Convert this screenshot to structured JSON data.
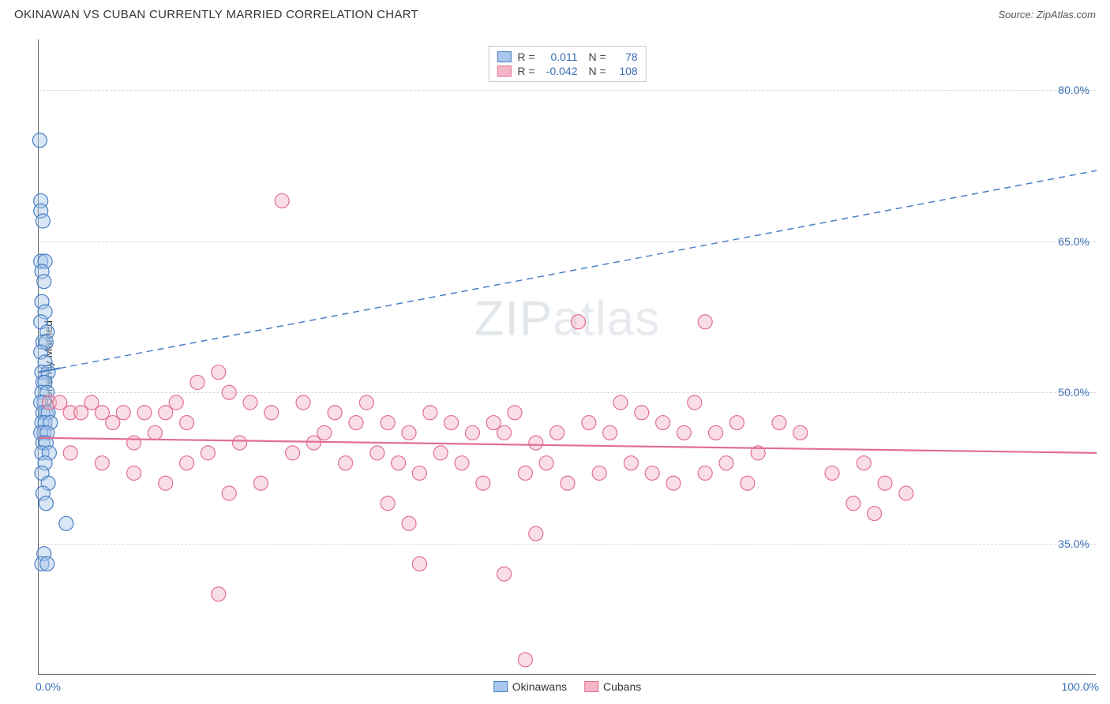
{
  "title": "OKINAWAN VS CUBAN CURRENTLY MARRIED CORRELATION CHART",
  "source": "Source: ZipAtlas.com",
  "watermark_main": "ZIP",
  "watermark_sub": "atlas",
  "chart": {
    "type": "scatter",
    "ylabel": "Currently Married",
    "xlim": [
      0,
      100
    ],
    "ylim": [
      22,
      85
    ],
    "xtick_labels": [
      "0.0%",
      "100.0%"
    ],
    "xtick_positions": [
      0,
      100
    ],
    "ytick_labels": [
      "35.0%",
      "50.0%",
      "65.0%",
      "80.0%"
    ],
    "ytick_positions": [
      35,
      50,
      65,
      80
    ],
    "grid_color": "#d8d8d8",
    "axis_color": "#666666",
    "background_color": "#ffffff",
    "marker_radius": 9,
    "marker_stroke_width": 1.2,
    "series": [
      {
        "name": "Okinawans",
        "fill": "#a9c7ec",
        "stroke": "#4a7fc4",
        "fill_opacity": 0.45,
        "R_label": "R =",
        "R": "0.011",
        "N_label": "N =",
        "N": "78",
        "trend": {
          "y_at_x0": 52,
          "y_at_x100": 72,
          "dash": "8,6",
          "width": 1.5,
          "solid_segment_x": 2
        },
        "points": [
          [
            0.1,
            75
          ],
          [
            0.2,
            69
          ],
          [
            0.2,
            68
          ],
          [
            0.4,
            67
          ],
          [
            0.2,
            63
          ],
          [
            0.6,
            63
          ],
          [
            0.3,
            62
          ],
          [
            0.5,
            61
          ],
          [
            0.3,
            59
          ],
          [
            0.6,
            58
          ],
          [
            0.2,
            57
          ],
          [
            0.8,
            56
          ],
          [
            0.4,
            55
          ],
          [
            0.7,
            55
          ],
          [
            0.2,
            54
          ],
          [
            0.6,
            53
          ],
          [
            0.3,
            52
          ],
          [
            0.9,
            52
          ],
          [
            0.4,
            51
          ],
          [
            0.6,
            51
          ],
          [
            0.3,
            50
          ],
          [
            0.8,
            50
          ],
          [
            0.5,
            49
          ],
          [
            0.2,
            49
          ],
          [
            0.7,
            48
          ],
          [
            0.4,
            48
          ],
          [
            0.9,
            48
          ],
          [
            0.3,
            47
          ],
          [
            0.6,
            47
          ],
          [
            1.1,
            47
          ],
          [
            0.5,
            46
          ],
          [
            0.2,
            46
          ],
          [
            0.8,
            46
          ],
          [
            0.4,
            45
          ],
          [
            0.7,
            45
          ],
          [
            0.3,
            44
          ],
          [
            1.0,
            44
          ],
          [
            0.6,
            43
          ],
          [
            0.3,
            42
          ],
          [
            0.9,
            41
          ],
          [
            0.4,
            40
          ],
          [
            0.7,
            39
          ],
          [
            2.6,
            37
          ],
          [
            0.5,
            34
          ],
          [
            0.3,
            33
          ],
          [
            0.8,
            33
          ]
        ]
      },
      {
        "name": "Cubans",
        "fill": "#f5b6c6",
        "stroke": "#e16f94",
        "fill_opacity": 0.45,
        "R_label": "R =",
        "R": "-0.042",
        "N_label": "N =",
        "N": "108",
        "trend": {
          "y_at_x0": 45.5,
          "y_at_x100": 44,
          "dash": "none",
          "width": 2.2
        },
        "points": [
          [
            23,
            69
          ],
          [
            51,
            57
          ],
          [
            63,
            57
          ],
          [
            17,
            52
          ],
          [
            15,
            51
          ],
          [
            13,
            49
          ],
          [
            55,
            49
          ],
          [
            62,
            49
          ],
          [
            1,
            49
          ],
          [
            2,
            49
          ],
          [
            3,
            48
          ],
          [
            5,
            49
          ],
          [
            6,
            48
          ],
          [
            8,
            48
          ],
          [
            4,
            48
          ],
          [
            10,
            48
          ],
          [
            7,
            47
          ],
          [
            12,
            48
          ],
          [
            14,
            47
          ],
          [
            11,
            46
          ],
          [
            18,
            50
          ],
          [
            20,
            49
          ],
          [
            22,
            48
          ],
          [
            25,
            49
          ],
          [
            28,
            48
          ],
          [
            30,
            47
          ],
          [
            27,
            46
          ],
          [
            31,
            49
          ],
          [
            33,
            47
          ],
          [
            35,
            46
          ],
          [
            37,
            48
          ],
          [
            39,
            47
          ],
          [
            41,
            46
          ],
          [
            43,
            47
          ],
          [
            45,
            48
          ],
          [
            44,
            46
          ],
          [
            47,
            45
          ],
          [
            49,
            46
          ],
          [
            52,
            47
          ],
          [
            54,
            46
          ],
          [
            57,
            48
          ],
          [
            59,
            47
          ],
          [
            61,
            46
          ],
          [
            64,
            46
          ],
          [
            66,
            47
          ],
          [
            68,
            44
          ],
          [
            70,
            47
          ],
          [
            72,
            46
          ],
          [
            9,
            45
          ],
          [
            16,
            44
          ],
          [
            19,
            45
          ],
          [
            24,
            44
          ],
          [
            26,
            45
          ],
          [
            29,
            43
          ],
          [
            32,
            44
          ],
          [
            34,
            43
          ],
          [
            36,
            42
          ],
          [
            38,
            44
          ],
          [
            40,
            43
          ],
          [
            42,
            41
          ],
          [
            46,
            42
          ],
          [
            48,
            43
          ],
          [
            50,
            41
          ],
          [
            53,
            42
          ],
          [
            56,
            43
          ],
          [
            58,
            42
          ],
          [
            60,
            41
          ],
          [
            63,
            42
          ],
          [
            65,
            43
          ],
          [
            67,
            41
          ],
          [
            75,
            42
          ],
          [
            78,
            43
          ],
          [
            80,
            41
          ],
          [
            82,
            40
          ],
          [
            77,
            39
          ],
          [
            79,
            38
          ],
          [
            3,
            44
          ],
          [
            6,
            43
          ],
          [
            9,
            42
          ],
          [
            12,
            41
          ],
          [
            14,
            43
          ],
          [
            18,
            40
          ],
          [
            21,
            41
          ],
          [
            17,
            30
          ],
          [
            33,
            39
          ],
          [
            35,
            37
          ],
          [
            36,
            33
          ],
          [
            44,
            32
          ],
          [
            47,
            36
          ],
          [
            46,
            23.5
          ]
        ]
      }
    ]
  },
  "bottom_legend": [
    {
      "label": "Okinawans",
      "fill": "#a9c7ec",
      "stroke": "#4a7fc4"
    },
    {
      "label": "Cubans",
      "fill": "#f5b6c6",
      "stroke": "#e16f94"
    }
  ]
}
